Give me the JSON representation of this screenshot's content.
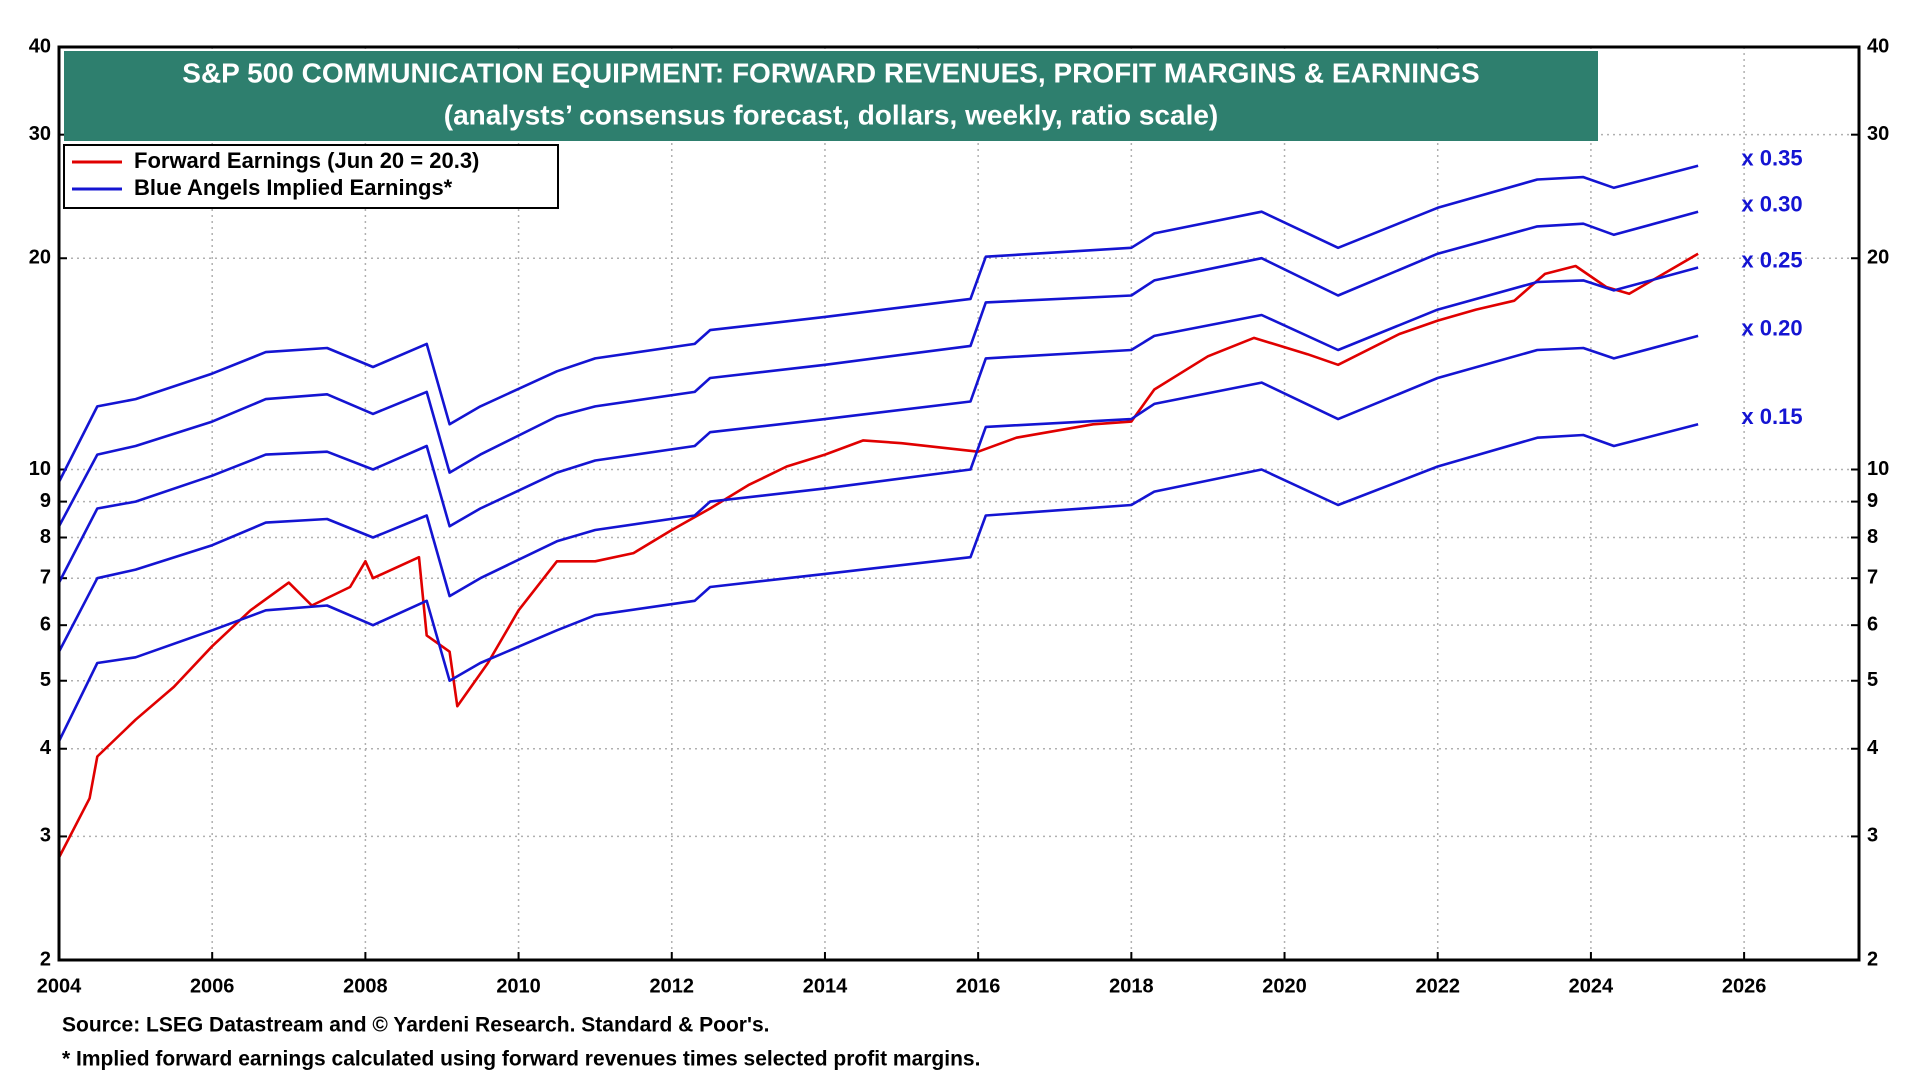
{
  "chart_data": {
    "type": "line",
    "title": "S&P 500 COMMUNICATION EQUIPMENT: FORWARD REVENUES, PROFIT MARGINS & EARNINGS",
    "subtitle": "(analysts’ consensus forecast, dollars, weekly, ratio scale)",
    "log_scale": true,
    "grid": true,
    "legend": "top-left",
    "xlim": [
      2004,
      2027.5
    ],
    "xticks": [
      2004,
      2006,
      2008,
      2010,
      2012,
      2014,
      2016,
      2018,
      2020,
      2022,
      2024,
      2026
    ],
    "ylim": [
      2,
      40
    ],
    "yticks": [
      2,
      3,
      4,
      5,
      6,
      7,
      8,
      9,
      10,
      20,
      30,
      40
    ],
    "implied_label": "Blue Angels Implied Earnings*",
    "implied_color": "#1414d2",
    "series": [
      {
        "name": "Forward Earnings (Jun 20 = 20.3)",
        "color": "#e00000",
        "x": [
          2004.0,
          2004.4,
          2004.5,
          2005.0,
          2005.5,
          2006.0,
          2006.5,
          2007.0,
          2007.3,
          2007.8,
          2008.0,
          2008.1,
          2008.7,
          2008.8,
          2009.1,
          2009.2,
          2009.6,
          2010.0,
          2010.5,
          2011.0,
          2011.5,
          2012.0,
          2012.5,
          2013.0,
          2013.5,
          2014.0,
          2014.5,
          2015.0,
          2016.0,
          2016.5,
          2017.5,
          2018.0,
          2018.3,
          2019.0,
          2019.6,
          2020.3,
          2020.7,
          2021.5,
          2022.0,
          2022.5,
          2023.0,
          2023.4,
          2023.8,
          2024.2,
          2024.5,
          2025.4
        ],
        "values": [
          2.8,
          3.4,
          3.9,
          4.4,
          4.9,
          5.6,
          6.3,
          6.9,
          6.4,
          6.8,
          7.4,
          7.0,
          7.5,
          5.8,
          5.5,
          4.6,
          5.3,
          6.3,
          7.4,
          7.4,
          7.6,
          8.2,
          8.8,
          9.5,
          10.1,
          10.5,
          11.0,
          10.9,
          10.6,
          11.1,
          11.6,
          11.7,
          13.0,
          14.5,
          15.4,
          14.6,
          14.1,
          15.6,
          16.3,
          16.9,
          17.4,
          19.0,
          19.5,
          18.2,
          17.8,
          20.3
        ]
      },
      {
        "name": "x 0.35",
        "color": "#1414d2",
        "x": [
          2004.0,
          2004.5,
          2005.0,
          2006.0,
          2006.7,
          2007.5,
          2008.1,
          2008.8,
          2009.1,
          2009.5,
          2010.5,
          2011.0,
          2012.3,
          2012.5,
          2014.0,
          2015.9,
          2016.1,
          2018.0,
          2018.3,
          2019.7,
          2020.7,
          2022.0,
          2023.3,
          2023.9,
          2024.3,
          2025.4
        ],
        "values": [
          9.6,
          12.3,
          12.6,
          13.7,
          14.7,
          14.9,
          14.0,
          15.1,
          11.6,
          12.3,
          13.8,
          14.4,
          15.1,
          15.8,
          16.5,
          17.5,
          20.1,
          20.7,
          21.7,
          23.3,
          20.7,
          23.6,
          25.9,
          26.1,
          25.2,
          27.1
        ]
      },
      {
        "name": "x 0.30",
        "color": "#1414d2",
        "x": [
          2004.0,
          2004.5,
          2005.0,
          2006.0,
          2006.7,
          2007.5,
          2008.1,
          2008.8,
          2009.1,
          2009.5,
          2010.5,
          2011.0,
          2012.3,
          2012.5,
          2014.0,
          2015.9,
          2016.1,
          2018.0,
          2018.3,
          2019.7,
          2020.7,
          2022.0,
          2023.3,
          2023.9,
          2024.3,
          2025.4
        ],
        "values": [
          8.3,
          10.5,
          10.8,
          11.7,
          12.6,
          12.8,
          12.0,
          12.9,
          9.9,
          10.5,
          11.9,
          12.3,
          12.9,
          13.5,
          14.1,
          15.0,
          17.3,
          17.7,
          18.6,
          20.0,
          17.7,
          20.3,
          22.2,
          22.4,
          21.6,
          23.3
        ]
      },
      {
        "name": "x 0.25",
        "color": "#1414d2",
        "x": [
          2004.0,
          2004.5,
          2005.0,
          2006.0,
          2006.7,
          2007.5,
          2008.1,
          2008.8,
          2009.1,
          2009.5,
          2010.5,
          2011.0,
          2012.3,
          2012.5,
          2014.0,
          2015.9,
          2016.1,
          2018.0,
          2018.3,
          2019.7,
          2020.7,
          2022.0,
          2023.3,
          2023.9,
          2024.3,
          2025.4
        ],
        "values": [
          6.9,
          8.8,
          9.0,
          9.8,
          10.5,
          10.6,
          10.0,
          10.8,
          8.3,
          8.8,
          9.9,
          10.3,
          10.8,
          11.3,
          11.8,
          12.5,
          14.4,
          14.8,
          15.5,
          16.6,
          14.8,
          16.9,
          18.5,
          18.6,
          18.0,
          19.4
        ]
      },
      {
        "name": "x 0.20",
        "color": "#1414d2",
        "x": [
          2004.0,
          2004.5,
          2005.0,
          2006.0,
          2006.7,
          2007.5,
          2008.1,
          2008.8,
          2009.1,
          2009.5,
          2010.5,
          2011.0,
          2012.3,
          2012.5,
          2014.0,
          2015.9,
          2016.1,
          2018.0,
          2018.3,
          2019.7,
          2020.7,
          2022.0,
          2023.3,
          2023.9,
          2024.3,
          2025.4
        ],
        "values": [
          5.5,
          7.0,
          7.2,
          7.8,
          8.4,
          8.5,
          8.0,
          8.6,
          6.6,
          7.0,
          7.9,
          8.2,
          8.6,
          9.0,
          9.4,
          10.0,
          11.5,
          11.8,
          12.4,
          13.3,
          11.8,
          13.5,
          14.8,
          14.9,
          14.4,
          15.5
        ]
      },
      {
        "name": "x 0.15",
        "color": "#1414d2",
        "x": [
          2004.0,
          2004.5,
          2005.0,
          2006.0,
          2006.7,
          2007.5,
          2008.1,
          2008.8,
          2009.1,
          2009.5,
          2010.5,
          2011.0,
          2012.3,
          2012.5,
          2014.0,
          2015.9,
          2016.1,
          2018.0,
          2018.3,
          2019.7,
          2020.7,
          2022.0,
          2023.3,
          2023.9,
          2024.3,
          2025.4
        ],
        "values": [
          4.1,
          5.3,
          5.4,
          5.9,
          6.3,
          6.4,
          6.0,
          6.5,
          5.0,
          5.3,
          5.9,
          6.2,
          6.5,
          6.8,
          7.1,
          7.5,
          8.6,
          8.9,
          9.3,
          10.0,
          8.9,
          10.1,
          11.1,
          11.2,
          10.8,
          11.6
        ]
      }
    ],
    "source": "Source: LSEG Datastream and © Yardeni Research. Standard & Poor's.",
    "footnote": "* Implied forward earnings calculated using forward revenues times selected profit margins."
  }
}
